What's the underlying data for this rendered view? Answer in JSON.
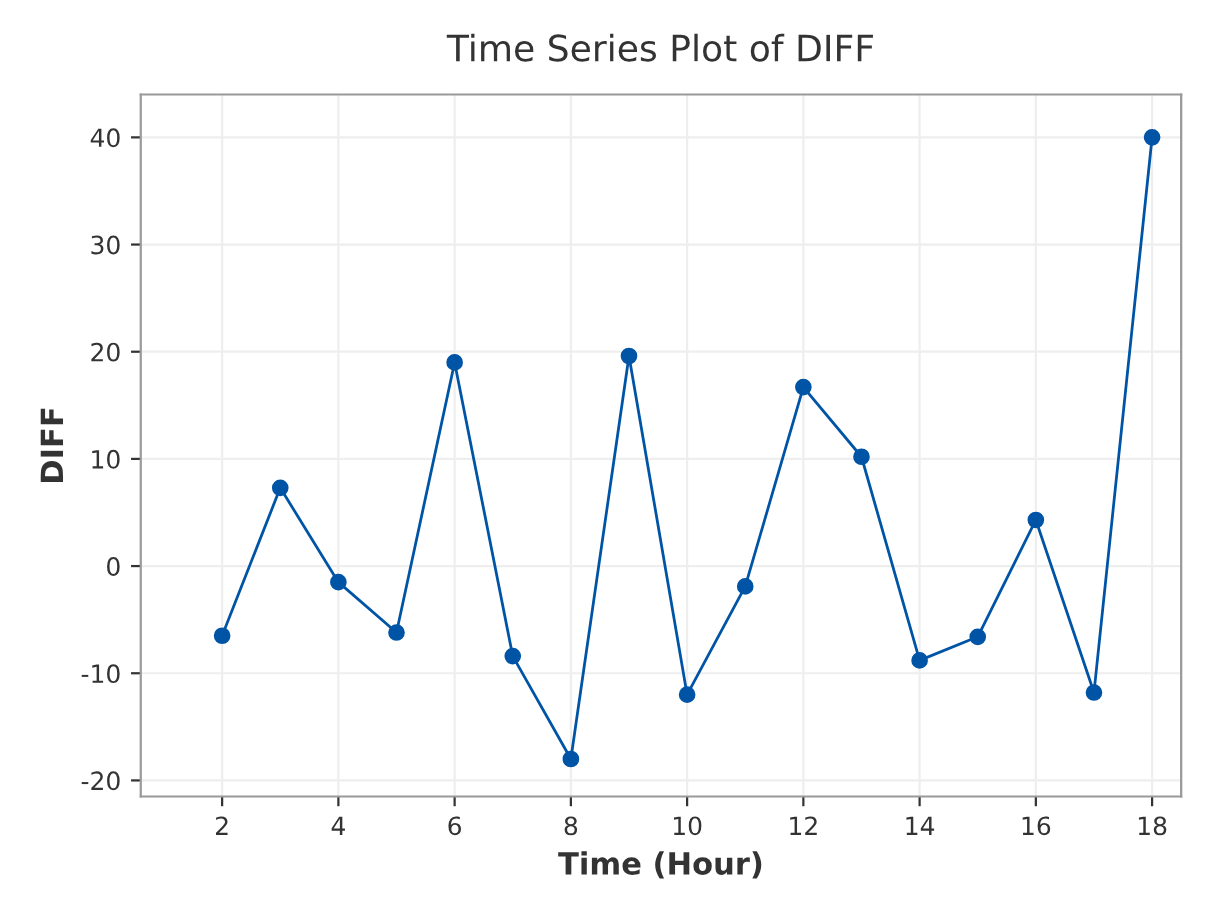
{
  "chart_data": {
    "type": "line",
    "title": "Time Series Plot of DIFF",
    "xlabel": "Time (Hour)",
    "ylabel": "DIFF",
    "x": [
      2,
      3,
      4,
      5,
      6,
      7,
      8,
      9,
      10,
      11,
      12,
      13,
      14,
      15,
      16,
      17,
      18
    ],
    "series": [
      {
        "color": "#0054a6",
        "values": [
          -6.5,
          7.3,
          -1.5,
          -6.2,
          19,
          -8.4,
          -18,
          19.6,
          -12,
          -1.9,
          16.7,
          10.2,
          -8.8,
          -6.6,
          4.3,
          -11.8,
          40
        ]
      }
    ],
    "xlim": [
      0.6,
      18.5
    ],
    "xticks": [
      2,
      4,
      6,
      8,
      10,
      12,
      14,
      16,
      18
    ],
    "ylim": [
      -21.5,
      44
    ],
    "yticks": [
      -20,
      -10,
      0,
      10,
      20,
      30,
      40
    ],
    "grid": true,
    "marker": "circle",
    "line_style": "solid"
  }
}
